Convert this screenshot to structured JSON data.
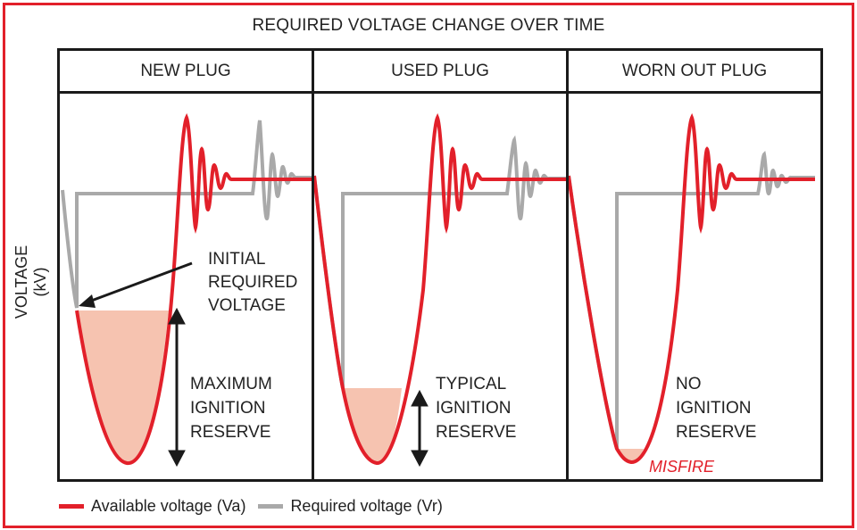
{
  "title": "REQUIRED VOLTAGE CHANGE OVER TIME",
  "y_axis_label": "VOLTAGE (kV)",
  "colors": {
    "available": "#e2202a",
    "required": "#a9a9a9",
    "reserve_fill": "#f6c3b0",
    "frame": "#e2202a",
    "misfire": "#e2202a"
  },
  "panels": [
    {
      "id": "new",
      "title": "NEW PLUG",
      "annotation_lines": [
        "INITIAL",
        "REQUIRED",
        "VOLTAGE"
      ],
      "reserve_lines": [
        "MAXIMUM",
        "IGNITION",
        "RESERVE"
      ],
      "reserve_level": "maximum"
    },
    {
      "id": "used",
      "title": "USED PLUG",
      "reserve_lines": [
        "TYPICAL",
        "IGNITION",
        "RESERVE"
      ],
      "reserve_level": "typical"
    },
    {
      "id": "worn",
      "title": "WORN OUT PLUG",
      "reserve_lines": [
        "NO",
        "IGNITION",
        "RESERVE"
      ],
      "misfire_label": "MISFIRE",
      "reserve_level": "none"
    }
  ],
  "legend": [
    {
      "label": "Available voltage (Va)",
      "color_key": "available"
    },
    {
      "label": "Required voltage (Vr)",
      "color_key": "required"
    }
  ]
}
